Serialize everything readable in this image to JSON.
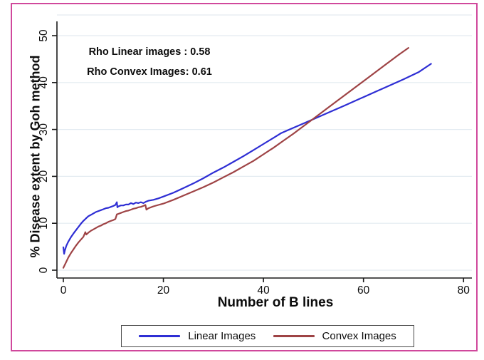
{
  "figure": {
    "border_color": "#d0489c",
    "background": "#ffffff"
  },
  "chart_data": {
    "type": "line",
    "title": "",
    "xlabel": "Number of B lines",
    "ylabel": "% Disease extent by Goh method",
    "xlim": [
      0,
      80
    ],
    "ylim": [
      0,
      50
    ],
    "x_ticks": [
      0,
      20,
      40,
      60,
      80
    ],
    "y_ticks": [
      0,
      10,
      20,
      30,
      40,
      50
    ],
    "grid": "horizontal",
    "grid_color": "#e3ebf1",
    "legend_position": "bottom",
    "annotations": [
      "Rho Linear images : 0.58",
      "Rho Convex Images: 0.61"
    ],
    "series": [
      {
        "name": "Linear Images",
        "color": "#2e2ed4",
        "x": [
          0,
          0.15,
          0.3,
          0.6,
          1,
          1.5,
          2,
          2.5,
          3,
          3.5,
          4,
          4.5,
          5,
          5.5,
          6,
          6.5,
          7,
          7.5,
          8,
          8.5,
          9,
          9.5,
          10,
          10.4,
          10.7,
          10.8,
          11,
          11.5,
          12,
          12.5,
          13,
          13.5,
          14,
          14.5,
          15,
          15.5,
          16,
          16.5,
          17,
          18,
          19,
          20,
          22,
          24,
          26,
          28,
          30,
          32,
          34,
          36,
          38,
          40,
          42,
          43.5,
          45,
          47,
          50,
          53,
          56,
          60,
          64,
          68,
          71,
          73.5
        ],
        "y": [
          4.9,
          3.5,
          4.2,
          5.2,
          6.1,
          7.0,
          7.8,
          8.5,
          9.2,
          9.9,
          10.5,
          11.0,
          11.5,
          11.8,
          12.1,
          12.4,
          12.6,
          12.8,
          13.0,
          13.2,
          13.3,
          13.5,
          13.7,
          13.9,
          14.5,
          13.4,
          13.6,
          13.8,
          13.8,
          14.0,
          14.0,
          14.3,
          14.1,
          14.4,
          14.3,
          14.5,
          14.3,
          14.6,
          14.8,
          15.0,
          15.3,
          15.7,
          16.5,
          17.5,
          18.5,
          19.6,
          20.8,
          21.9,
          23.1,
          24.3,
          25.6,
          26.9,
          28.2,
          29.2,
          29.9,
          30.8,
          32.2,
          33.6,
          35.0,
          36.9,
          38.8,
          40.7,
          42.2,
          44.0
        ]
      },
      {
        "name": "Convex Images",
        "color": "#9e4345",
        "x": [
          0,
          0.5,
          1,
          1.5,
          2,
          2.5,
          3,
          3.5,
          4,
          4.4,
          4.6,
          5,
          5.5,
          6,
          6.5,
          7,
          7.5,
          8,
          8.5,
          9,
          9.5,
          10,
          10.4,
          10.7,
          11,
          11.5,
          12,
          12.5,
          13,
          13.5,
          14,
          14.5,
          15,
          15.5,
          16,
          16.4,
          16.6,
          17,
          17.5,
          18,
          19,
          20,
          22,
          24,
          26,
          28,
          30,
          32,
          34,
          36,
          38,
          40,
          42,
          44,
          46,
          48,
          50,
          52,
          55,
          58,
          61,
          64,
          67,
          69
        ],
        "y": [
          0.5,
          1.6,
          2.7,
          3.6,
          4.4,
          5.2,
          5.9,
          6.5,
          7.1,
          8.1,
          7.6,
          8.0,
          8.4,
          8.7,
          9.0,
          9.3,
          9.5,
          9.8,
          10.0,
          10.3,
          10.5,
          10.7,
          10.9,
          11.9,
          12.0,
          12.2,
          12.4,
          12.6,
          12.7,
          12.9,
          13.1,
          13.2,
          13.4,
          13.5,
          13.7,
          13.9,
          12.9,
          13.2,
          13.4,
          13.6,
          13.9,
          14.2,
          15.0,
          15.9,
          16.8,
          17.7,
          18.7,
          19.8,
          20.9,
          22.1,
          23.3,
          24.7,
          26.1,
          27.6,
          29.1,
          30.7,
          32.3,
          33.9,
          36.3,
          38.7,
          41.1,
          43.5,
          45.9,
          47.4
        ]
      }
    ]
  }
}
